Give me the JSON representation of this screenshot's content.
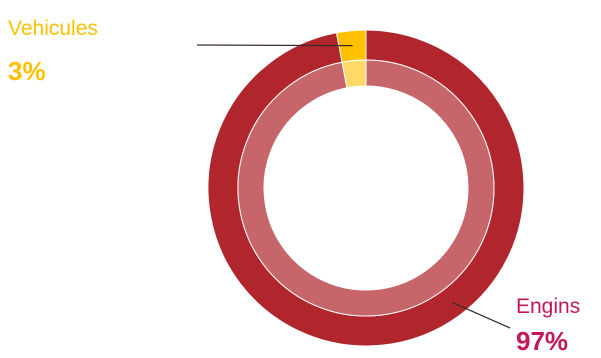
{
  "chart_data": {
    "type": "pie",
    "style": "donut",
    "title": "",
    "slices": [
      {
        "label": "Vehicules",
        "value": 3,
        "display": "3%",
        "outer_color": "#ffc000",
        "inner_color": "#ffd966",
        "label_color": "#ffc000"
      },
      {
        "label": "Engins",
        "value": 97,
        "display": "97%",
        "outer_color": "#b0262c",
        "inner_color": "#c7666a",
        "label_color": "#c2185b"
      }
    ],
    "start": "top",
    "direction": "counter-clockwise",
    "legend": "none",
    "leader_lines": true
  }
}
